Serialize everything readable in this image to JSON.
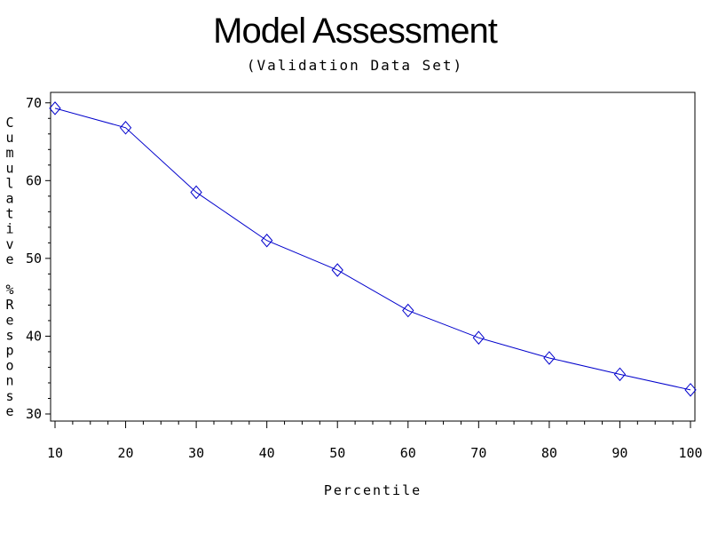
{
  "chart_data": {
    "type": "line",
    "title": "Model Assessment",
    "subtitle": "(Validation Data Set)",
    "xlabel": "Percentile",
    "ylabel": "Cumulative %Response",
    "xlim": [
      10,
      100
    ],
    "ylim": [
      30,
      71
    ],
    "x_ticks": [
      10,
      20,
      30,
      40,
      50,
      60,
      70,
      80,
      90,
      100
    ],
    "y_ticks": [
      30,
      40,
      50,
      60,
      70
    ],
    "grid": false,
    "line_color": "#0000cc",
    "marker": "diamond",
    "series": [
      {
        "x": [
          10,
          20,
          30,
          40,
          50,
          60,
          70,
          80,
          90,
          100
        ],
        "values": [
          69.3,
          66.8,
          58.5,
          52.3,
          48.5,
          43.3,
          39.8,
          37.2,
          35.1,
          33.1
        ]
      }
    ]
  }
}
